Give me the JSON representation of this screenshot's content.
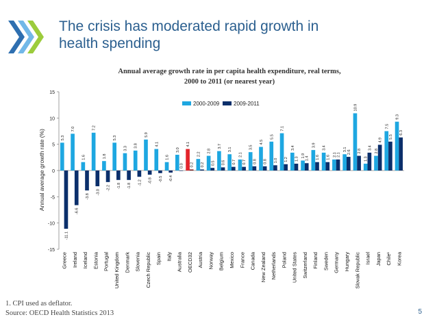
{
  "slide": {
    "title_line1": "The crisis has moderated rapid growth in",
    "title_line2": "health spending",
    "footnote_line1": "1. CPI used as deflator.",
    "footnote_line2": "Source: OECD Health Statistics 2013",
    "page_number": "5"
  },
  "colors": {
    "series_2000_2009": "#1ea7e1",
    "series_2009_2011": "#0b2f6b",
    "oecd_highlight_2000_2009": "#e3242b",
    "oecd_highlight_2009_2011": "#7f1d1d",
    "title": "#2b5f8f"
  },
  "chart_data": {
    "type": "bar",
    "title_line1": "Annual average growth rate in per capita health expenditure, real terms,",
    "title_line2": "2000 to 2011 (or nearest year)",
    "ylabel": "Annual average growth rate (%)",
    "ylim": [
      -15,
      15
    ],
    "yticks": [
      15,
      10,
      5,
      0,
      -5,
      -10,
      -15
    ],
    "grid": false,
    "legend_position": "top-right",
    "highlight_category": "OECD32",
    "categories": [
      "Greece",
      "Ireland",
      "Iceland",
      "Estonia",
      "Portugal",
      "United Kingdom",
      "Denmark",
      "Slovenia",
      "Czech Republic",
      "Spain",
      "Italy",
      "Australia",
      "OECD32",
      "Austria",
      "Norway",
      "Belgium",
      "Mexico",
      "France",
      "Canada",
      "New Zealand",
      "Netherlands",
      "Poland",
      "United States",
      "Switzerland",
      "Finland",
      "Sweden",
      "Germany",
      "Hungary",
      "Slovak Republic",
      "Israel",
      "Japan",
      "Chile¹",
      "Korea"
    ],
    "series": [
      {
        "name": "2000-2009",
        "values": [
          5.3,
          7.0,
          1.6,
          7.2,
          1.8,
          5.3,
          3.3,
          3.8,
          5.9,
          4.1,
          1.6,
          3.0,
          4.1,
          2.2,
          2.8,
          3.7,
          3.1,
          2.1,
          3.5,
          4.5,
          5.5,
          7.1,
          3.4,
          1.9,
          3.9,
          3.4,
          2.1,
          3.1,
          10.9,
          1.3,
          2.8,
          7.5,
          9.3
        ]
      },
      {
        "name": "2009-2011",
        "values": [
          -11.1,
          -6.6,
          -3.8,
          -3.0,
          -2.2,
          -1.8,
          -1.8,
          -1.2,
          -0.8,
          -0.5,
          -0.4,
          0.0,
          0.2,
          0.2,
          0.5,
          0.6,
          0.7,
          0.7,
          0.8,
          0.8,
          1.0,
          1.2,
          1.3,
          1.4,
          1.6,
          1.6,
          2.1,
          2.6,
          2.8,
          3.4,
          4.9,
          5.5,
          6.3
        ]
      }
    ],
    "bar_labels_2000_2009": [
      "5.3",
      "7.0",
      "1.6",
      "7.2",
      "1.8",
      "5.3",
      "3.3",
      "3.8",
      "5.9",
      "4.1",
      "1.6",
      "3.0",
      "4.1",
      "2.2",
      "2.8",
      "3.7",
      "3.1",
      "2.1",
      "3.5",
      "4.5",
      "5.5",
      "7.1",
      "3.4",
      "1.9",
      "3.9",
      "3.4",
      "2.1",
      "3.1",
      "10.9",
      "1.3",
      "2.8",
      "7.5",
      "9.3"
    ],
    "bar_labels_2009_2011": [
      "-11.1",
      "-6.6",
      "-3.8",
      "-3.0",
      "-2.2",
      "-1.8",
      "-1.8",
      "-1.2",
      "-0.8",
      "-0.5",
      "-0.4",
      "0.0",
      "0.2",
      "0.2",
      "0.5",
      "0.6",
      "0.7",
      "0.7",
      "0.8",
      "0.8",
      "1.0",
      "1.2",
      "1.3",
      "1.4",
      "1.6",
      "1.6",
      "2.1",
      "2.6",
      "2.8",
      "3.4",
      "4.9",
      "5.5",
      "6.3"
    ]
  }
}
